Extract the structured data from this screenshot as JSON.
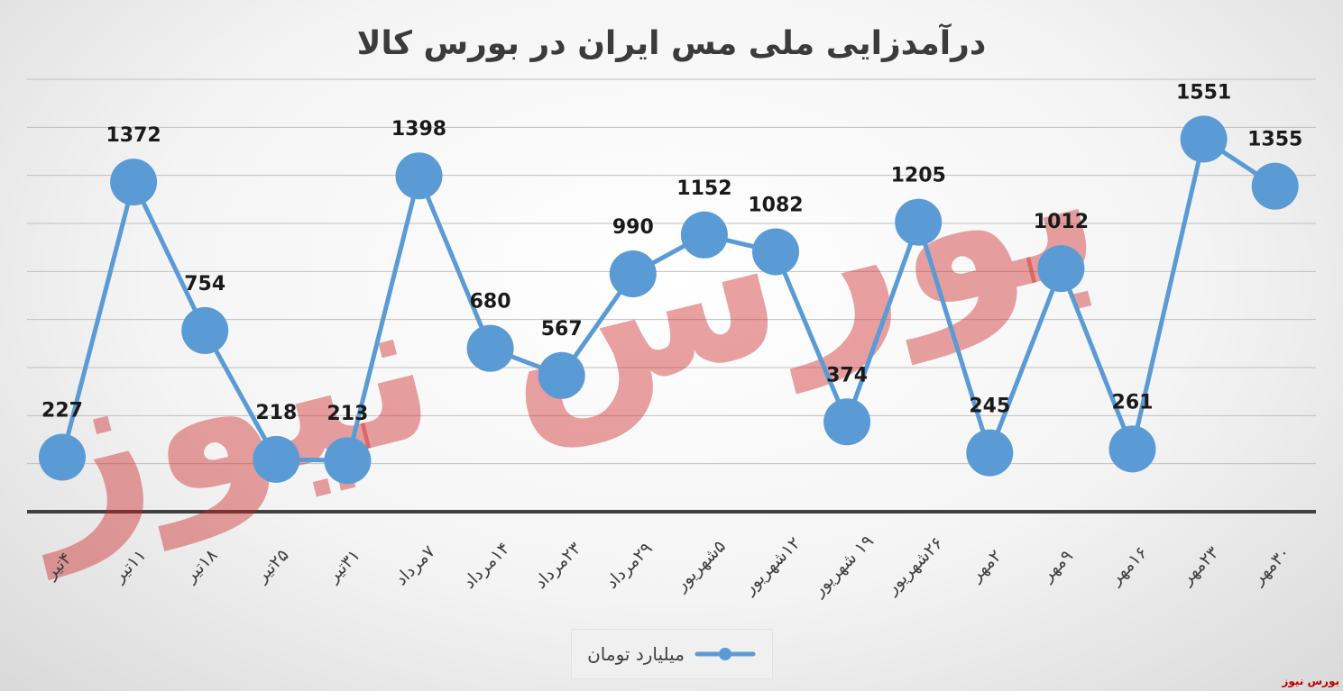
{
  "chart_data": {
    "type": "line",
    "title": "درآمدزایی ملی مس ایران در بورس کالا",
    "categories": [
      "۴تیر",
      "۱۱تیر",
      "۱۸تیر",
      "۲۵تیر",
      "۳۱تیر",
      "۷مرداد",
      "۱۴مرداد",
      "۲۳مرداد",
      "۲۹مرداد",
      "۵شهریور",
      "۱۲شهریور",
      "۱۹ شهریور",
      "۲۶شهریور",
      "۲مهر",
      "۹مهر",
      "۱۶مهر",
      "۲۳مهر",
      "۳۰مهر"
    ],
    "series": [
      {
        "name": "میلیارد تومان",
        "values": [
          227,
          1372,
          754,
          218,
          213,
          1398,
          680,
          567,
          990,
          1152,
          1082,
          374,
          1205,
          245,
          1012,
          261,
          1551,
          1355
        ]
      }
    ],
    "xlabel": "",
    "ylabel": "",
    "ylim": [
      0,
      1800
    ],
    "grid": true,
    "legend_position": "bottom",
    "colors": {
      "series": "#5b9bd5",
      "axis": "#404040",
      "grid": "#bfbfbf",
      "labels": "#1a1a1a"
    }
  },
  "watermark": {
    "text": "بورس نیوز",
    "color": "#c0000099"
  },
  "brand": "بورس نیوز"
}
